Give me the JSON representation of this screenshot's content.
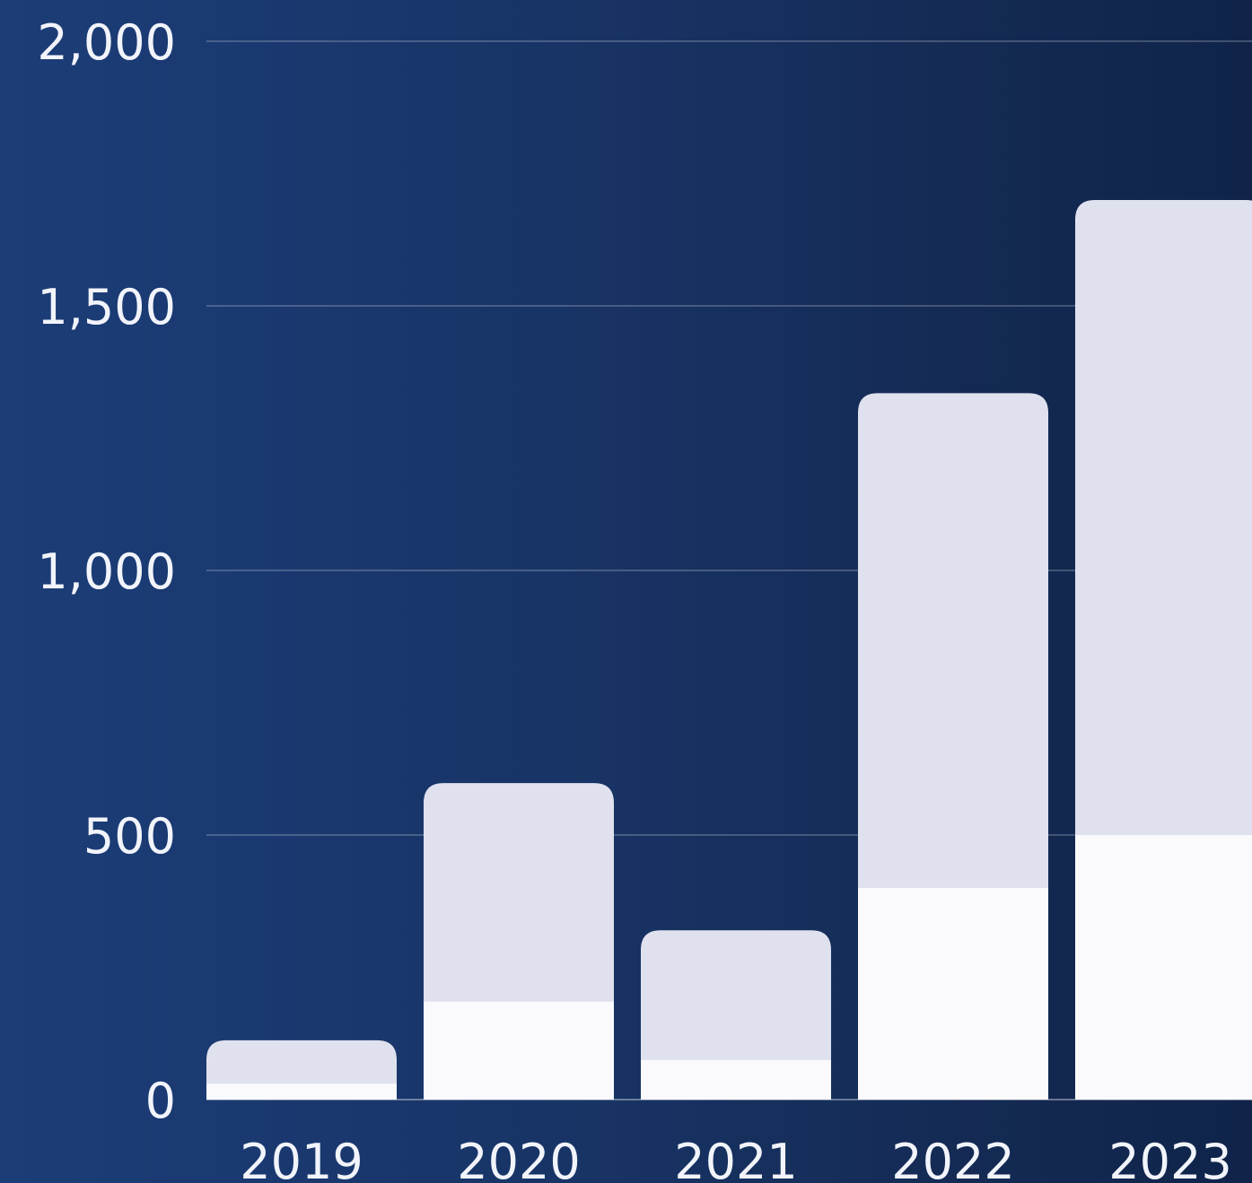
{
  "chart_data": {
    "type": "bar",
    "stacked": true,
    "categories": [
      "2019",
      "2020",
      "2021",
      "2022",
      "2023"
    ],
    "series": [
      {
        "values": [
          30,
          185,
          75,
          400,
          500
        ]
      },
      {
        "values": [
          82,
          413,
          245,
          935,
          1200
        ]
      }
    ],
    "totals": [
      112,
      598,
      320,
      1335,
      1700
    ],
    "ylim": [
      0,
      2000
    ],
    "yticks": [
      "0",
      "500",
      "1,000",
      "1,500",
      "2,000"
    ],
    "ytick_values": [
      0,
      500,
      1000,
      1500,
      2000
    ],
    "grid": true,
    "title": "",
    "xlabel": "",
    "ylabel": "",
    "colors": {
      "bottom_segment": "#fafafd",
      "top_segment": "#dfe1ee",
      "text": "#f2f4fb",
      "grid": "rgba(255,255,255,0.28)"
    }
  }
}
